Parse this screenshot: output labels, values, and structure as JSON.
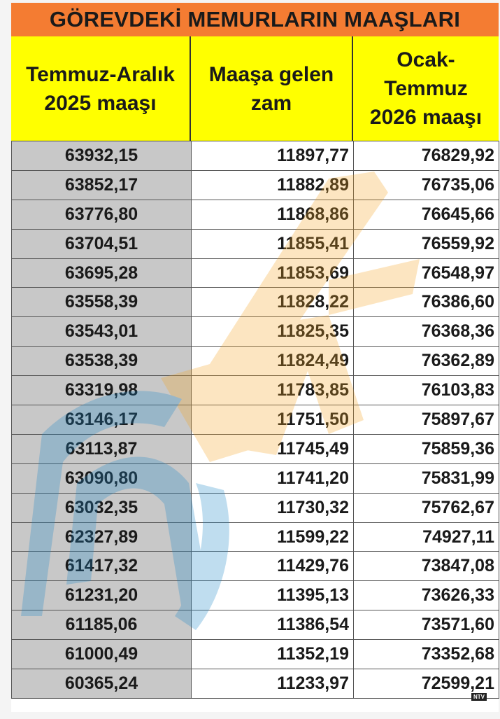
{
  "title": "GÖREVDEKİ MEMURLARIN MAAŞLARI",
  "headers": {
    "col1": "Temmuz-Aralık 2025 maaşı",
    "col2": "Maaşa gelen zam",
    "col3_line1": "Ocak-",
    "col3_line2": "Temmuz",
    "col3_line3": "2026 maaşı"
  },
  "rows": [
    [
      "63932,15",
      "11897,77",
      "76829,92"
    ],
    [
      "63852,17",
      "11882,89",
      "76735,06"
    ],
    [
      "63776,80",
      "11868,86",
      "76645,66"
    ],
    [
      "63704,51",
      "11855,41",
      "76559,92"
    ],
    [
      "63695,28",
      "11853,69",
      "76548,97"
    ],
    [
      "63558,39",
      "11828,22",
      "76386,60"
    ],
    [
      "63543,01",
      "11825,35",
      "76368,36"
    ],
    [
      "63538,39",
      "11824,49",
      "76362,89"
    ],
    [
      "63319,98",
      "11783,85",
      "76103,83"
    ],
    [
      "63146,17",
      "11751,50",
      "75897,67"
    ],
    [
      "63113,87",
      "11745,49",
      "75859,36"
    ],
    [
      "63090,80",
      "11741,20",
      "75831,99"
    ],
    [
      "63032,35",
      "11730,32",
      "75762,67"
    ],
    [
      "62327,89",
      "11599,22",
      "74927,11"
    ],
    [
      "61417,32",
      "11429,76",
      "73847,08"
    ],
    [
      "61231,20",
      "11395,13",
      "73626,33"
    ],
    [
      "61185,06",
      "11386,54",
      "73571,60"
    ],
    [
      "61000,49",
      "11352,19",
      "73352,68"
    ],
    [
      "60365,24",
      "11233,97",
      "72599,21"
    ]
  ],
  "watermark": {
    "icon": "ntv-logo-icon",
    "text": "NTV",
    "colors": {
      "blue": "#1e88c8",
      "orange": "#f6a623"
    }
  },
  "colors": {
    "title_bg": "#f47c32",
    "header_bg": "#ffff00",
    "first_col_bg": "#c8c8c8"
  }
}
